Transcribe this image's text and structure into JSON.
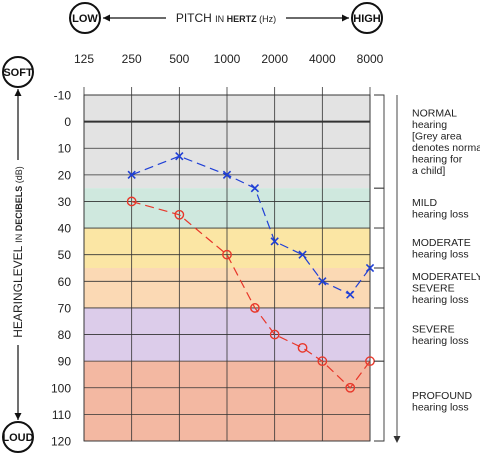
{
  "header": {
    "low_badge": "LOW",
    "high_badge": "HIGH",
    "pitch_label_prefix": "PITCH ",
    "pitch_label_in": "IN ",
    "pitch_label_unit": "HERTZ",
    "pitch_label_suffix": " (Hz)"
  },
  "side": {
    "soft_badge": "SOFT",
    "loud_badge": "LOUD",
    "y_label_prefix": "HEARINGLEVEL ",
    "y_label_in": "IN ",
    "y_label_unit": "DECIBELS",
    "y_label_suffix": " (dB)"
  },
  "chart_data": {
    "type": "line",
    "x_ticks": [
      "125",
      "250",
      "500",
      "1000",
      "2000",
      "4000",
      "8000"
    ],
    "y_ticks": [
      "-10",
      "0",
      "10",
      "20",
      "30",
      "40",
      "50",
      "60",
      "70",
      "80",
      "90",
      "100",
      "110",
      "120"
    ],
    "ylim": [
      -10,
      120
    ],
    "y_inverted": true,
    "x_scale": "log2",
    "bands": [
      {
        "from": -10,
        "to": 25,
        "color": "#e3e3e3"
      },
      {
        "from": 25,
        "to": 40,
        "color": "#cfe8de"
      },
      {
        "from": 40,
        "to": 55,
        "color": "#fbe6a4"
      },
      {
        "from": 55,
        "to": 70,
        "color": "#fbd9b4"
      },
      {
        "from": 70,
        "to": 90,
        "color": "#dcccea"
      },
      {
        "from": 90,
        "to": 120,
        "color": "#f3b8a2"
      }
    ],
    "series": [
      {
        "marker": "x",
        "color": "#1f3fd6",
        "x": [
          250,
          500,
          1000,
          1500,
          2000,
          3000,
          4000,
          6000,
          8000
        ],
        "y": [
          20,
          13,
          20,
          25,
          45,
          50,
          60,
          65,
          55
        ]
      },
      {
        "marker": "o",
        "color": "#e8372a",
        "x": [
          250,
          500,
          1000,
          1500,
          2000,
          3000,
          4000,
          6000,
          8000
        ],
        "y": [
          30,
          35,
          50,
          70,
          80,
          85,
          90,
          100,
          90
        ]
      }
    ],
    "categories": [
      {
        "title": "NORMAL",
        "lines": [
          "hearing",
          "[Grey area",
          "denotes normal",
          "hearing for",
          "a child]"
        ],
        "from": -10,
        "to": 25
      },
      {
        "title": "MILD",
        "lines": [
          "hearing loss"
        ],
        "from": 25,
        "to": 40
      },
      {
        "title": "MODERATE",
        "lines": [
          "hearing loss"
        ],
        "from": 40,
        "to": 55
      },
      {
        "title": "MODERATELY",
        "lines": [
          "SEVERE",
          "hearing loss"
        ],
        "from": 55,
        "to": 70
      },
      {
        "title": "SEVERE",
        "lines": [
          "hearing loss"
        ],
        "from": 70,
        "to": 90
      },
      {
        "title": "PROFOUND",
        "lines": [
          "hearing loss"
        ],
        "from": 90,
        "to": 120
      }
    ]
  }
}
